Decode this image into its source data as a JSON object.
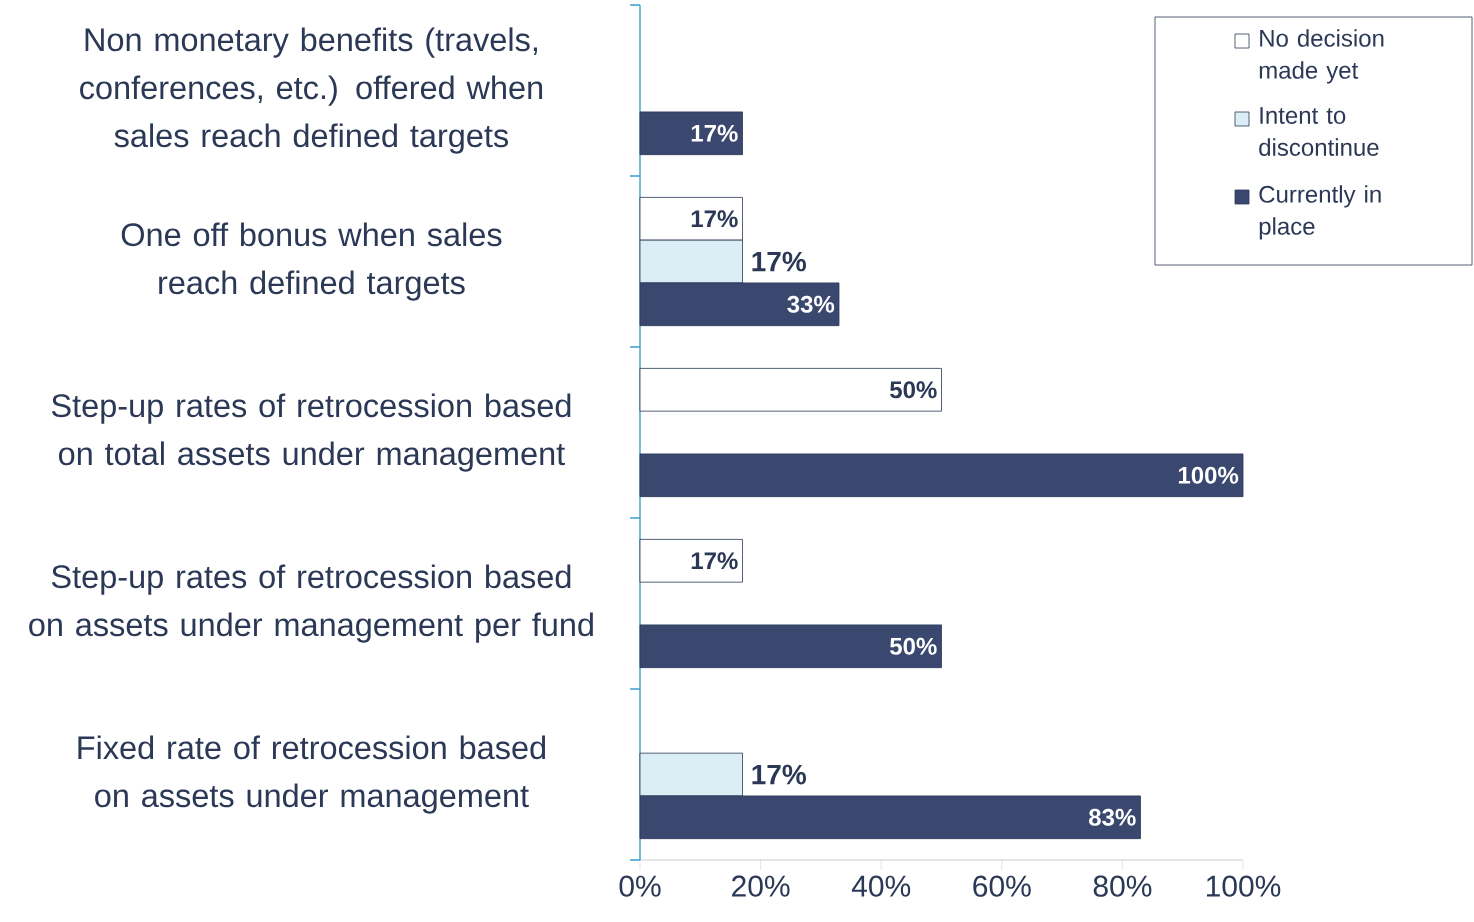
{
  "chart_data": {
    "type": "bar",
    "orientation": "horizontal",
    "categories": [
      "Non monetary benefits (travels, conferences, etc.) offered when sales reach defined targets",
      "One off bonus when sales reach defined targets",
      "Step-up rates of retrocession based on total assets under management",
      "Step-up rates of retrocession based on assets under management per fund",
      "Fixed rate of retrocession based on assets under management"
    ],
    "series": [
      {
        "name": "No decision made yet",
        "color": "#ffffff",
        "values": [
          null,
          17,
          50,
          17,
          null
        ],
        "value_labels": [
          null,
          "17%",
          "50%",
          "17%",
          null
        ]
      },
      {
        "name": "Intent to discontinue",
        "color": "#dbeef6",
        "values": [
          null,
          17,
          null,
          null,
          17
        ],
        "value_labels": [
          null,
          "17%",
          null,
          null,
          "17%"
        ]
      },
      {
        "name": "Currently in place",
        "color": "#3a4870",
        "values": [
          17,
          33,
          100,
          50,
          83
        ],
        "value_labels": [
          "17%",
          "33%",
          "100%",
          "50%",
          "83%"
        ]
      }
    ],
    "xlim": [
      0,
      100
    ],
    "xticks": [
      {
        "value": 0,
        "label": "0%"
      },
      {
        "value": 20,
        "label": "20%"
      },
      {
        "value": 40,
        "label": "40%"
      },
      {
        "value": 60,
        "label": "60%"
      },
      {
        "value": 80,
        "label": "80%"
      },
      {
        "value": 100,
        "label": "100%"
      }
    ],
    "legend": "top right"
  }
}
